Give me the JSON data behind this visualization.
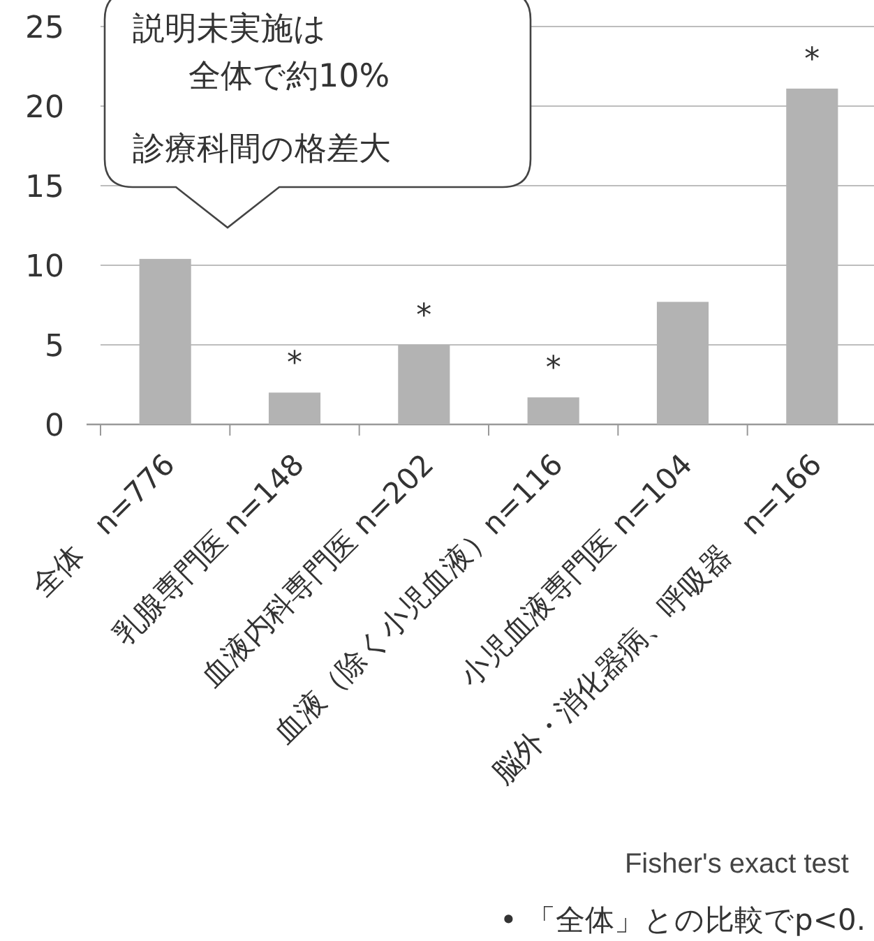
{
  "chart_data": {
    "type": "bar",
    "categories": [
      "全体　n=776",
      "乳腺専門医 n=148",
      "血液内科専門医 n=202",
      "血液（除く小児血液）n=116",
      "小児血液専門医 n=104",
      "脳外・消化器病、呼吸器　n=166"
    ],
    "values": [
      10.4,
      2.0,
      5.0,
      1.7,
      7.7,
      21.1
    ],
    "value_labels": [
      null,
      "*",
      "*",
      "*",
      null,
      "*"
    ],
    "color": "#b3b3b3",
    "ylim": [
      0,
      25
    ],
    "yticks": [
      0,
      5,
      10,
      15,
      20,
      25
    ],
    "grid": "y",
    "annotations": [
      "説明未実施は",
      "全体で約10%",
      "診療科間の格差大",
      "Fisher's exact test",
      "• 「全体」との比較でp<0."
    ]
  }
}
